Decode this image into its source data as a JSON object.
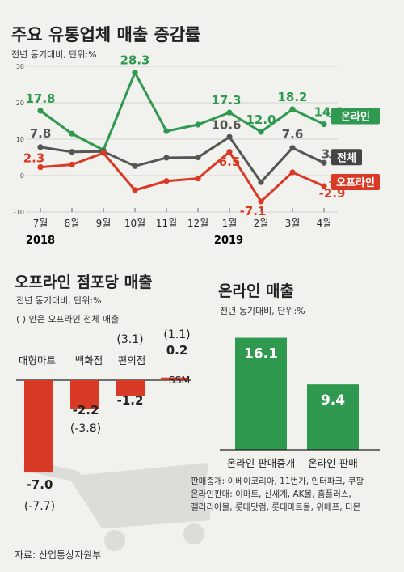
{
  "line_chart_title": "주요 유통업체 매출 증감률",
  "line_chart_subtitle": "전년 동기대비, 단위:%",
  "year_labels": [
    "2018",
    "2019"
  ],
  "offline_title": "오프라인 점포당 매출",
  "offline_subtitle_1": "전년 동기대비, 단위:%",
  "offline_subtitle_2": "( ) 안은 오프라인 전체 매출",
  "online_title": "온라인 매출",
  "online_subtitle": "전년 동기대비, 단위:%",
  "notes": [
    "판매중개: 이베이코리아, 11번가, 인터파크, 쿠팡",
    "온라인판매: 이마트, 신세계, AK몰, 홈플러스,",
    "갤러리아몰, 롯데닷컴, 롯데마트몰, 위메프, 티몬"
  ],
  "source": "자료: 산업통상자원부",
  "colors": {
    "online": "#2f9a4f",
    "total": "#555555",
    "offline": "#d93a25",
    "gray_line": "#b9b9b4"
  },
  "chart_data": [
    {
      "type": "line",
      "title": "주요 유통업체 매출 증감률",
      "subtitle": "전년 동기대비, 단위:%",
      "categories": [
        "7월",
        "8월",
        "9월",
        "10월",
        "11월",
        "12월",
        "1월",
        "2월",
        "3월",
        "4월"
      ],
      "ylim": [
        -10,
        30
      ],
      "yticks": [
        "30",
        "20",
        "10",
        "0",
        "-10"
      ],
      "series": [
        {
          "name": "온라인",
          "values": [
            17.8,
            11.5,
            7.0,
            28.3,
            12.2,
            14.0,
            17.3,
            12.0,
            18.2,
            14.1
          ],
          "labels": [
            "17.8",
            null,
            null,
            "28.3",
            null,
            null,
            "17.3",
            "12.0",
            "18.2",
            "14.1"
          ]
        },
        {
          "name": "전체",
          "values": [
            7.8,
            6.5,
            6.6,
            2.6,
            4.9,
            5.0,
            10.6,
            -1.8,
            7.6,
            3.5
          ],
          "labels": [
            "7.8",
            null,
            null,
            null,
            null,
            null,
            "10.6",
            null,
            "7.6",
            "3.5"
          ]
        },
        {
          "name": "오프라인",
          "values": [
            2.3,
            3.0,
            6.2,
            -4.0,
            -1.5,
            -0.8,
            6.5,
            -7.1,
            0.9,
            -2.9
          ],
          "labels": [
            "2.3",
            null,
            null,
            null,
            null,
            null,
            "6.5",
            "-7.1",
            null,
            "-2.9"
          ]
        }
      ]
    },
    {
      "type": "bar",
      "title": "오프라인 점포당 매출",
      "subtitle": "전년 동기대비, 단위:%",
      "categories": [
        "대형마트",
        "백화점",
        "편의점",
        "SSM"
      ],
      "values": [
        -7.0,
        -2.2,
        -1.2,
        0.2
      ],
      "labels": [
        "-7.0",
        "-2.2",
        "-1.2",
        "0.2"
      ],
      "total_offline": [
        "(-7.7)",
        "(-3.8)",
        "(3.1)",
        "(1.1)"
      ]
    },
    {
      "type": "bar",
      "title": "온라인 매출",
      "subtitle": "전년 동기대비, 단위:%",
      "categories": [
        "온라인 판매중개",
        "온라인 판매"
      ],
      "values": [
        16.1,
        9.4
      ],
      "labels": [
        "16.1",
        "9.4"
      ]
    }
  ]
}
